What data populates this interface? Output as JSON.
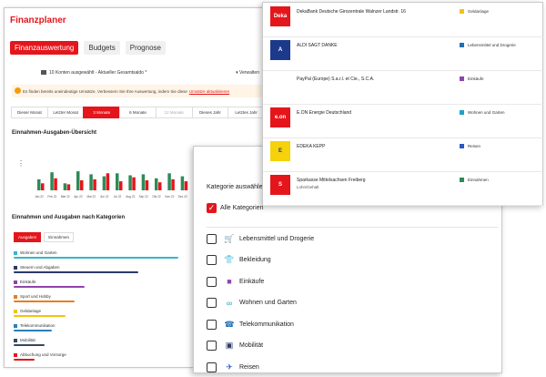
{
  "app": {
    "title": "Finanzplaner",
    "tabs": [
      {
        "label": "Finanzauswertung",
        "active": true
      },
      {
        "label": "Budgets",
        "active": false
      },
      {
        "label": "Prognose",
        "active": false
      }
    ],
    "accounts_selector": "10 Konten ausgewählt - Aktueller Gesamtsaldo *",
    "sort_label": "Verwalten",
    "notice": {
      "text": "Es finden bereits uneindeutige Umsätze. Verbessern Sie Ihre Auswertung, indem Sie diese",
      "link": "Umsätze aktualisieren"
    },
    "periods": [
      {
        "label": "Dieser Monat",
        "state": "normal"
      },
      {
        "label": "Letzter Monat",
        "state": "normal"
      },
      {
        "label": "3 Monate",
        "state": "active"
      },
      {
        "label": "6 Monate",
        "state": "normal"
      },
      {
        "label": "12 Monate",
        "state": "muted"
      },
      {
        "label": "Dieses Jahr",
        "state": "normal"
      },
      {
        "label": "Letztes Jahr",
        "state": "normal"
      }
    ],
    "overview_title": "Einnahmen-Ausgaben-Übersicht",
    "categories_title": "Einnahmen und Ausgaben nach Kategorien",
    "category_tabs": [
      {
        "label": "Ausgaben",
        "active": true
      },
      {
        "label": "Einnahmen",
        "active": false
      }
    ],
    "category_rows": [
      {
        "label": "Wohnen und Garten",
        "color": "#38b6c9",
        "share": 0.95
      },
      {
        "label": "Steuern und Abgaben",
        "color": "#2b3a67",
        "share": 0.72
      },
      {
        "label": "Einkäufe",
        "color": "#8e44ad",
        "share": 0.41
      },
      {
        "label": "Sport und Hobby",
        "color": "#e67e22",
        "share": 0.35
      },
      {
        "label": "Geldanlage",
        "color": "#f1c40f",
        "share": 0.3
      },
      {
        "label": "Telekommunikation",
        "color": "#2980b9",
        "share": 0.22
      },
      {
        "label": "Mobilität",
        "color": "#34495e",
        "share": 0.18
      },
      {
        "label": "Abbuchung und Vorsorge",
        "color": "#e4161c",
        "share": 0.12
      }
    ]
  },
  "chart_data": {
    "type": "bar",
    "categories": [
      "Jan 22",
      "Feb 22",
      "Mär 22",
      "Apr 22",
      "Mai 22",
      "Jun 22",
      "Jul 22",
      "Aug 22",
      "Sep 22",
      "Okt 22",
      "Nov 22",
      "Dez 22"
    ],
    "tick_labels": [
      "Jan 22 Einnahmen",
      "Feb 22 Einnahmen",
      "Mär 22 Einnahmen",
      "Apr 22 Einnahmen",
      "Mai 22 Einnahmen",
      "Jun 22 Einnahmen",
      "Jul 22 Einnahmen",
      "Aug 22 Einnahmen",
      "Sep 22 Einnahmen",
      "Okt 22 Einnahmen",
      "Nov 22 Einnahmen",
      "Dez 22 Einnahmen"
    ],
    "series": [
      {
        "values": [
          0.55,
          0.9,
          0.35,
          0.95,
          0.8,
          0.7,
          0.85,
          0.75,
          0.8,
          0.6,
          0.85,
          0.7
        ],
        "color": "#2e8b57"
      },
      {
        "values": [
          0.35,
          0.6,
          0.3,
          0.5,
          0.55,
          0.85,
          0.45,
          0.65,
          0.5,
          0.4,
          0.55,
          0.45
        ],
        "color": "#e4161c"
      }
    ],
    "ylim": [
      0,
      1
    ],
    "grid": false
  },
  "modal": {
    "title": "Kategorie auswählen",
    "all_label": "Alle Kategorien",
    "options": [
      {
        "label": "Lebensmittel und Drogerie",
        "icon": "cart-icon",
        "color": "#1e6fb3"
      },
      {
        "label": "Bekleidung",
        "icon": "shirt-icon",
        "color": "#e67e22"
      },
      {
        "label": "Einkäufe",
        "icon": "bag-icon",
        "color": "#8e44ad"
      },
      {
        "label": "Wohnen und Garten",
        "icon": "sofa-icon",
        "color": "#1aa3c6"
      },
      {
        "label": "Telekommunikation",
        "icon": "phone-icon",
        "color": "#1e6fb3"
      },
      {
        "label": "Mobilität",
        "icon": "car-icon",
        "color": "#2b3a67"
      },
      {
        "label": "Reisen",
        "icon": "plane-icon",
        "color": "#2b59c3"
      }
    ]
  },
  "merchants": [
    {
      "name": "DekaBank Deutsche Girozentrale Walnzer Landstr. 16",
      "sub": "",
      "logo": "Deka",
      "logo_bg": "#e4161c",
      "category": "Geldanlage",
      "cat_color": "#f1c40f"
    },
    {
      "name": "ALDI SAGT DANKE",
      "sub": "",
      "logo": "A",
      "logo_bg": "#1d3a8a",
      "category": "Lebensmittel und Drogerie",
      "cat_color": "#1e6fb3"
    },
    {
      "name": "PayPal (Europe) S.a.r.l. et Cie., S.C.A.",
      "sub": "",
      "logo": "",
      "logo_bg": "#ffffff",
      "category": "Einkäufe",
      "cat_color": "#8e44ad"
    },
    {
      "name": "E.ON Energie Deutschland",
      "sub": "",
      "logo": "e.on",
      "logo_bg": "#e4161c",
      "category": "Wohnen und Garten",
      "cat_color": "#1aa3c6"
    },
    {
      "name": "EDEKA KEPP",
      "sub": "",
      "logo": "E",
      "logo_bg": "#f5d20c",
      "category": "Reisen",
      "cat_color": "#2b59c3"
    },
    {
      "name": "Sparkasse Mittelsachsen Freiberg",
      "sub": "Lohn/Gehalt",
      "logo": "S",
      "logo_bg": "#e4161c",
      "category": "Einnahmen",
      "cat_color": "#2e8b57"
    }
  ]
}
